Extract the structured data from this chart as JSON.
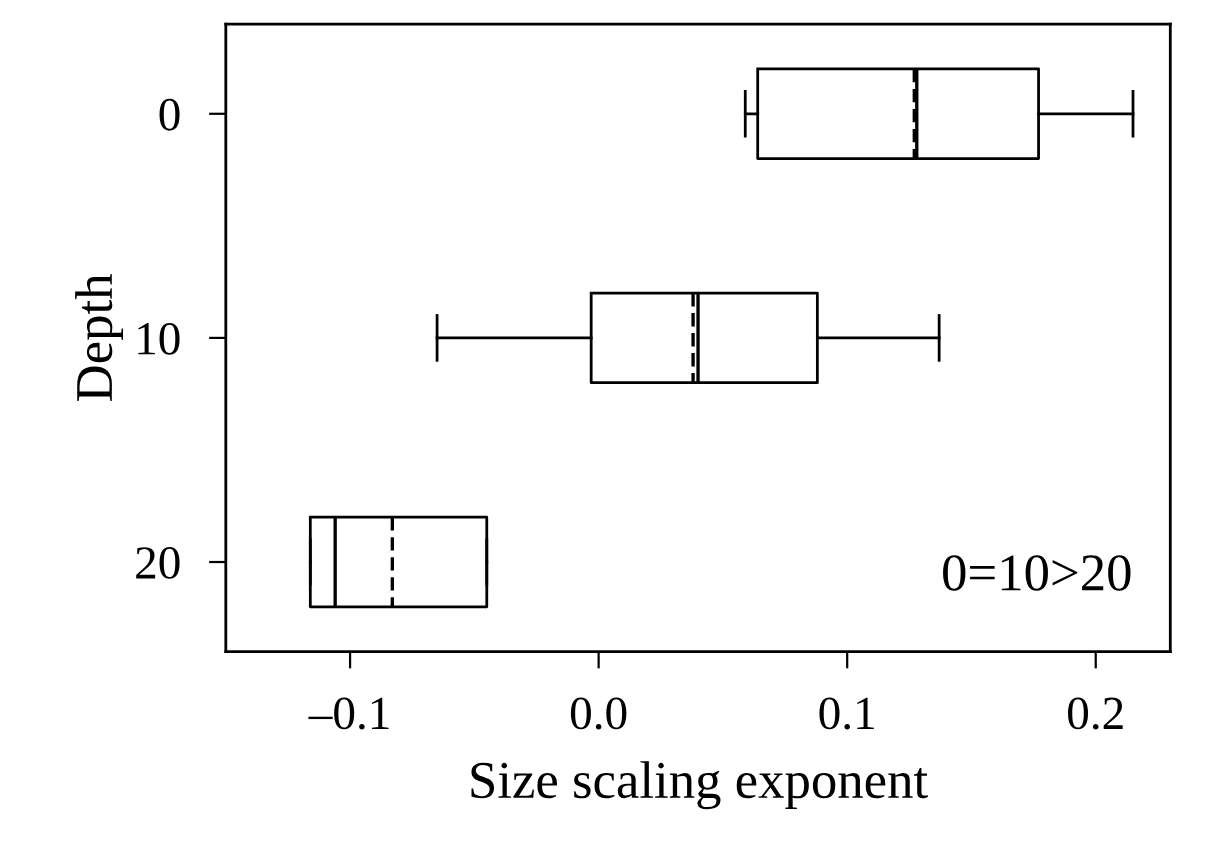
{
  "chart_data": {
    "type": "box",
    "orientation": "horizontal",
    "xlabel": "Size scaling exponent",
    "ylabel": "Depth",
    "categories": [
      "0",
      "10",
      "20"
    ],
    "boxes": [
      {
        "low": 0.059,
        "q1": 0.064,
        "median": 0.128,
        "q3": 0.177,
        "high": 0.215,
        "mean": 0.127
      },
      {
        "low": -0.065,
        "q1": -0.003,
        "median": 0.04,
        "q3": 0.088,
        "high": 0.137,
        "mean": 0.038
      },
      {
        "low": -0.116,
        "q1": -0.116,
        "median": -0.106,
        "q3": -0.045,
        "high": -0.045,
        "mean": -0.083
      }
    ],
    "xlim": [
      -0.15,
      0.23
    ],
    "xticks": [
      {
        "value": -0.1,
        "label": "–0.1"
      },
      {
        "value": 0.0,
        "label": "0.0"
      },
      {
        "value": 0.1,
        "label": "0.1"
      },
      {
        "value": 0.2,
        "label": "0.2"
      }
    ],
    "annotations": [
      "0=10>20"
    ],
    "grid": false
  }
}
